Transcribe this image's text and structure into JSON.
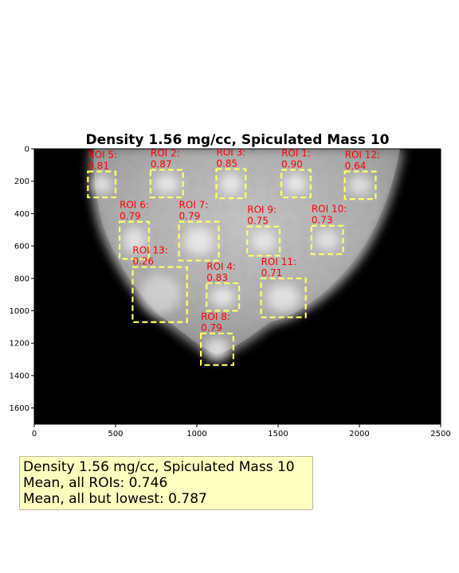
{
  "chart_data": {
    "type": "image",
    "title": "Density 1.56 mg/cc, Spiculated Mass 10",
    "xlabel": "",
    "ylabel": "",
    "xlim": [
      0,
      2500
    ],
    "ylim": [
      1700,
      0
    ],
    "x_ticks": [
      0,
      500,
      1000,
      1500,
      2000,
      2500
    ],
    "y_ticks": [
      0,
      200,
      400,
      600,
      800,
      1000,
      1200,
      1400,
      1600
    ],
    "roi_color": "#ffff66",
    "label_color": "#ff0000",
    "rois": [
      {
        "label": "ROI 1:",
        "value": "0.90",
        "x0": 1520,
        "x1": 1700,
        "y0": 130,
        "y1": 300
      },
      {
        "label": "ROI 2:",
        "value": "0.87",
        "x0": 715,
        "x1": 915,
        "y0": 130,
        "y1": 300
      },
      {
        "label": "ROI 3:",
        "value": "0.85",
        "x0": 1120,
        "x1": 1300,
        "y0": 125,
        "y1": 305
      },
      {
        "label": "ROI 5:",
        "value": "0.81",
        "x0": 330,
        "x1": 500,
        "y0": 140,
        "y1": 300
      },
      {
        "label": "ROI 12:",
        "value": "0.64",
        "x0": 1910,
        "x1": 2100,
        "y0": 140,
        "y1": 310
      },
      {
        "label": "ROI 6:",
        "value": "0.79",
        "x0": 525,
        "x1": 705,
        "y0": 450,
        "y1": 680
      },
      {
        "label": "ROI 7:",
        "value": "0.79",
        "x0": 890,
        "x1": 1135,
        "y0": 450,
        "y1": 690
      },
      {
        "label": "ROI 9:",
        "value": "0.75",
        "x0": 1310,
        "x1": 1510,
        "y0": 480,
        "y1": 660
      },
      {
        "label": "ROI 10:",
        "value": "0.73",
        "x0": 1705,
        "x1": 1900,
        "y0": 475,
        "y1": 650
      },
      {
        "label": "ROI 13:",
        "value": "0.26",
        "x0": 605,
        "x1": 940,
        "y0": 730,
        "y1": 1070
      },
      {
        "label": "ROI 4:",
        "value": "0.83",
        "x0": 1060,
        "x1": 1260,
        "y0": 830,
        "y1": 1000
      },
      {
        "label": "ROI 11:",
        "value": "0.71",
        "x0": 1395,
        "x1": 1670,
        "y0": 800,
        "y1": 1040
      },
      {
        "label": "ROI 8:",
        "value": "0.79",
        "x0": 1025,
        "x1": 1225,
        "y0": 1140,
        "y1": 1335
      }
    ]
  },
  "summary": {
    "line1": "Density 1.56 mg/cc, Spiculated Mass 10",
    "line2": "Mean, all ROIs: 0.746",
    "line3": "Mean, all but lowest: 0.787"
  }
}
